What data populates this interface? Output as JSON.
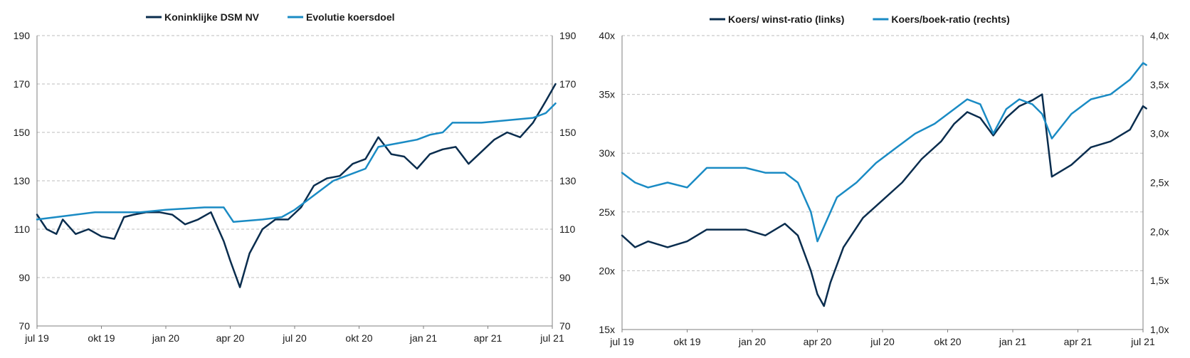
{
  "colors": {
    "dark_series": "#0a2d4e",
    "light_series": "#1a8bc4",
    "grid": "#bdbdbd",
    "axis": "#7f7f7f"
  },
  "chart_data": [
    {
      "type": "line",
      "legend_position": "top",
      "x_tick_labels": [
        "jul 19",
        "okt 19",
        "jan 20",
        "apr 20",
        "jul 20",
        "okt 20",
        "jan 21",
        "apr 21",
        "jul 21"
      ],
      "y_left": {
        "ticks": [
          "70",
          "90",
          "110",
          "130",
          "150",
          "170",
          "190"
        ],
        "min": 70,
        "max": 190
      },
      "y_right": {
        "ticks": [
          "70",
          "90",
          "110",
          "130",
          "150",
          "170",
          "190"
        ],
        "min": 70,
        "max": 190
      },
      "grid": "horizontal dashed",
      "series": [
        {
          "name": "Koninklijke DSM NV",
          "color": "#0a2d4e",
          "axis": "left",
          "x": [
            0.0,
            0.15,
            0.3,
            0.4,
            0.6,
            0.8,
            1.0,
            1.2,
            1.35,
            1.5,
            1.7,
            1.9,
            2.1,
            2.3,
            2.5,
            2.7,
            2.9,
            3.0,
            3.15,
            3.3,
            3.5,
            3.7,
            3.9,
            4.1,
            4.3,
            4.5,
            4.7,
            4.9,
            5.1,
            5.3,
            5.5,
            5.7,
            5.9,
            6.1,
            6.3,
            6.5,
            6.7,
            6.9,
            7.1,
            7.3,
            7.5,
            7.7,
            7.9,
            8.05
          ],
          "values": [
            116,
            110,
            108,
            114,
            108,
            110,
            107,
            106,
            115,
            116,
            117,
            117,
            116,
            112,
            114,
            117,
            105,
            97,
            86,
            100,
            110,
            114,
            114,
            119,
            128,
            131,
            132,
            137,
            139,
            148,
            141,
            140,
            135,
            141,
            143,
            144,
            137,
            142,
            147,
            150,
            148,
            154,
            163,
            170
          ]
        },
        {
          "name": "Evolutie koersdoel",
          "color": "#1a8bc4",
          "axis": "left",
          "x": [
            0.0,
            0.3,
            0.9,
            1.6,
            2.0,
            2.6,
            2.9,
            3.05,
            3.5,
            3.8,
            4.0,
            4.2,
            4.6,
            4.8,
            5.1,
            5.3,
            5.7,
            5.9,
            6.1,
            6.3,
            6.45,
            6.9,
            7.3,
            7.7,
            7.9,
            8.05
          ],
          "values": [
            114,
            115,
            117,
            117,
            118,
            119,
            119,
            113,
            114,
            115,
            118,
            122,
            130,
            132,
            135,
            144,
            146,
            147,
            149,
            150,
            154,
            154,
            155,
            156,
            158,
            162
          ]
        }
      ]
    },
    {
      "type": "line",
      "legend_position": "top",
      "x_tick_labels": [
        "jul 19",
        "okt 19",
        "jan 20",
        "apr 20",
        "jul 20",
        "okt 20",
        "jan 21",
        "apr 21",
        "jul 21"
      ],
      "y_left": {
        "ticks": [
          "15x",
          "20x",
          "25x",
          "30x",
          "35x",
          "40x"
        ],
        "min": 15,
        "max": 40
      },
      "y_right": {
        "ticks": [
          "1,0x",
          "1,5x",
          "2,0x",
          "2,5x",
          "3,0x",
          "3,5x",
          "4,0x"
        ],
        "min": 1.0,
        "max": 4.0
      },
      "grid": "horizontal dashed",
      "series": [
        {
          "name": "Koers/ winst-ratio (links)",
          "color": "#0a2d4e",
          "axis": "left",
          "x": [
            0.0,
            0.2,
            0.4,
            0.7,
            1.0,
            1.3,
            1.6,
            1.9,
            2.2,
            2.5,
            2.7,
            2.9,
            3.0,
            3.1,
            3.2,
            3.4,
            3.7,
            4.0,
            4.3,
            4.6,
            4.9,
            5.1,
            5.3,
            5.5,
            5.7,
            5.9,
            6.1,
            6.3,
            6.45,
            6.6,
            6.9,
            7.2,
            7.5,
            7.8,
            8.0,
            8.05
          ],
          "values": [
            23,
            22,
            22.5,
            22,
            22.5,
            23.5,
            23.5,
            23.5,
            23,
            24,
            23,
            20,
            18,
            17,
            19,
            22,
            24.5,
            26,
            27.5,
            29.5,
            31,
            32.5,
            33.5,
            33,
            31.5,
            33,
            34,
            34.5,
            35,
            28,
            29,
            30.5,
            31,
            32,
            34,
            33.8
          ]
        },
        {
          "name": "Koers/boek-ratio (rechts)",
          "color": "#1a8bc4",
          "axis": "right",
          "x": [
            0.0,
            0.2,
            0.4,
            0.7,
            1.0,
            1.3,
            1.6,
            1.9,
            2.2,
            2.5,
            2.7,
            2.9,
            3.0,
            3.1,
            3.3,
            3.6,
            3.9,
            4.2,
            4.5,
            4.8,
            5.1,
            5.3,
            5.5,
            5.7,
            5.9,
            6.1,
            6.3,
            6.45,
            6.6,
            6.9,
            7.2,
            7.5,
            7.8,
            8.0,
            8.05
          ],
          "values": [
            2.6,
            2.5,
            2.45,
            2.5,
            2.45,
            2.65,
            2.65,
            2.65,
            2.6,
            2.6,
            2.5,
            2.2,
            1.9,
            2.05,
            2.35,
            2.5,
            2.7,
            2.85,
            3.0,
            3.1,
            3.25,
            3.35,
            3.3,
            3.0,
            3.25,
            3.35,
            3.3,
            3.2,
            2.95,
            3.2,
            3.35,
            3.4,
            3.55,
            3.72,
            3.7
          ]
        }
      ]
    }
  ]
}
